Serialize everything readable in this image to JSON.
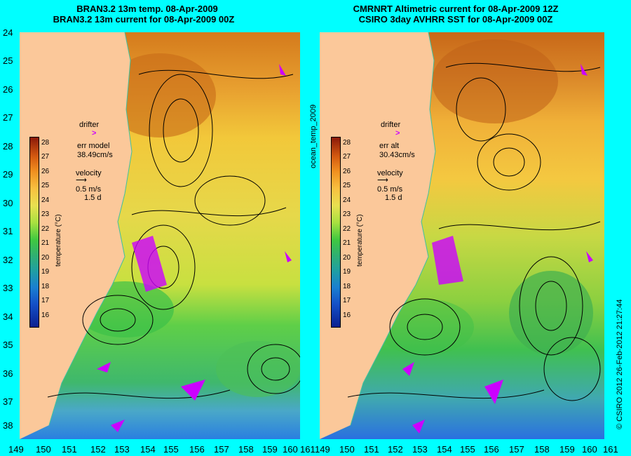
{
  "left_panel": {
    "title_line1": "BRAN3.2 13m temp. 08-Apr-2009",
    "title_line2": "BRAN3.2 13m current for 08-Apr-2009 00Z",
    "drifter_label": "drifter",
    "err_label": "err model",
    "err_value": "38.49cm/s",
    "velocity_label": "velocity",
    "velocity_speed": "0.5 m/s",
    "velocity_time": "1.5 d"
  },
  "right_panel": {
    "title_line1": "CMRNRT Altimetric current for 08-Apr-2009 12Z",
    "title_line2": "CSIRO 3day AVHRR SST for 08-Apr-2009 00Z",
    "drifter_label": "drifter",
    "err_label": "err alt",
    "err_value": "30.43cm/s",
    "velocity_label": "velocity",
    "velocity_speed": "0.5 m/s",
    "velocity_time": "1.5 d"
  },
  "colorbar": {
    "unit_label": "temperature (°C)",
    "ticks": [
      "28",
      "27",
      "26",
      "25",
      "24",
      "23",
      "22",
      "21",
      "20",
      "19",
      "18",
      "17",
      "16"
    ]
  },
  "middle_label": "ocean_temp_2009",
  "footer": "© CSIRO 2012   26-Feb-2012 21:27:44",
  "lat_ticks": [
    "24",
    "25",
    "26",
    "27",
    "28",
    "29",
    "30",
    "31",
    "32",
    "33",
    "34",
    "35",
    "36",
    "37",
    "38"
  ],
  "lon_ticks": [
    "149",
    "150",
    "151",
    "152",
    "153",
    "154",
    "155",
    "156",
    "157",
    "158",
    "159",
    "160",
    "161"
  ],
  "colors": {
    "background": "#00ffff",
    "land": "#fbc89a",
    "drifter": "#cc00ff",
    "warm": "#d07a1c",
    "cool": "#2a7fe0"
  }
}
